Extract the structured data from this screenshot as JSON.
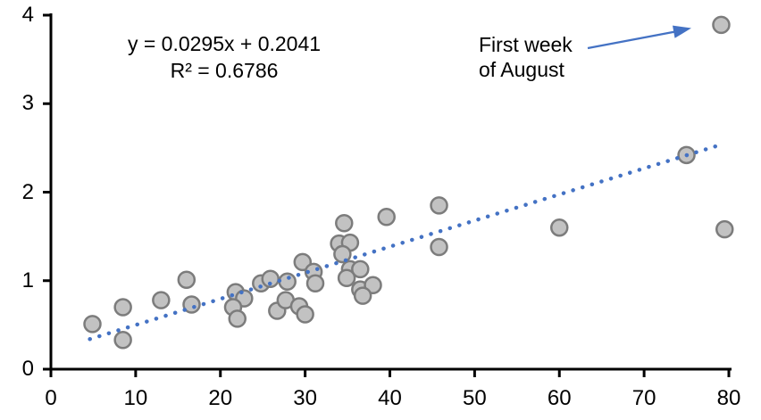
{
  "chart_data": {
    "type": "scatter",
    "title": "",
    "xlabel": "",
    "ylabel": "",
    "xlim": [
      0,
      80
    ],
    "ylim": [
      0,
      4
    ],
    "x_ticks": [
      0,
      10,
      20,
      30,
      40,
      50,
      60,
      70,
      80
    ],
    "y_ticks": [
      0,
      1,
      2,
      3,
      4
    ],
    "grid": false,
    "legend": false,
    "points": [
      [
        4.9,
        0.51
      ],
      [
        8.5,
        0.7
      ],
      [
        8.5,
        0.33
      ],
      [
        13.0,
        0.78
      ],
      [
        16.0,
        1.01
      ],
      [
        16.6,
        0.73
      ],
      [
        21.8,
        0.87
      ],
      [
        22.8,
        0.8
      ],
      [
        21.5,
        0.7
      ],
      [
        22.0,
        0.57
      ],
      [
        24.8,
        0.97
      ],
      [
        25.9,
        1.02
      ],
      [
        27.9,
        0.99
      ],
      [
        26.7,
        0.66
      ],
      [
        27.7,
        0.78
      ],
      [
        29.7,
        1.21
      ],
      [
        29.3,
        0.71
      ],
      [
        30.0,
        0.62
      ],
      [
        31.0,
        1.1
      ],
      [
        31.2,
        0.97
      ],
      [
        34.0,
        1.42
      ],
      [
        35.3,
        1.43
      ],
      [
        34.6,
        1.65
      ],
      [
        34.4,
        1.3
      ],
      [
        35.3,
        1.13
      ],
      [
        36.5,
        1.13
      ],
      [
        34.9,
        1.03
      ],
      [
        36.5,
        0.9
      ],
      [
        38.0,
        0.95
      ],
      [
        36.8,
        0.83
      ],
      [
        39.6,
        1.72
      ],
      [
        45.8,
        1.85
      ],
      [
        45.8,
        1.38
      ],
      [
        60.0,
        1.6
      ],
      [
        75.0,
        2.42
      ],
      [
        79.1,
        3.89
      ],
      [
        79.5,
        1.58
      ]
    ],
    "trendline": {
      "slope": 0.0295,
      "intercept": 0.2041,
      "x_start": 4.6,
      "x_end": 78.8,
      "style": "dotted",
      "equation_label": "y = 0.0295x + 0.2041",
      "r_squared_label": "R² = 0.6786"
    },
    "annotation": {
      "lines": [
        "First week",
        "of August"
      ],
      "target_point": [
        79.1,
        3.89
      ]
    },
    "colors": {
      "marker_fill": "#C2C2C2",
      "marker_stroke": "#7C7C7C",
      "trendline": "#4472C4",
      "arrow": "#4472C4",
      "axis": "#000000"
    }
  }
}
